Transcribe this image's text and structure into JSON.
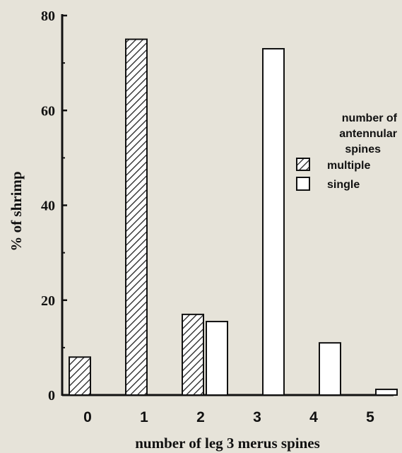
{
  "chart_data": {
    "type": "bar",
    "categories": [
      "0",
      "1",
      "2",
      "3",
      "4",
      "5"
    ],
    "series": [
      {
        "name": "multiple",
        "pattern": "hatched",
        "values": [
          8,
          75,
          17,
          0,
          0,
          0
        ]
      },
      {
        "name": "single",
        "pattern": "open",
        "values": [
          0,
          0,
          15.5,
          73,
          11,
          1.2
        ]
      }
    ],
    "xlabel": "number of leg 3 merus spines",
    "ylabel": "% of shrimp",
    "ylim": [
      0,
      80
    ],
    "yticks": [
      "0",
      "20",
      "40",
      "60",
      "80"
    ],
    "grid": false,
    "legend": {
      "title_lines": [
        "number of",
        "antennular",
        "spines"
      ],
      "placement": "right"
    }
  }
}
